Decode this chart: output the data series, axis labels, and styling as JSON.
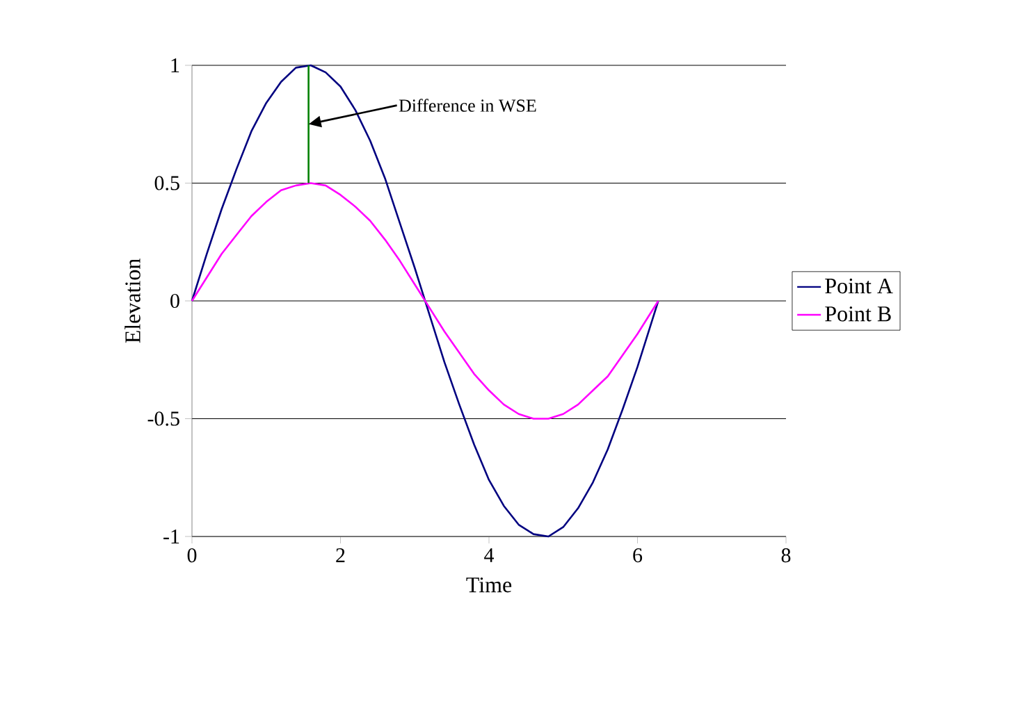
{
  "chart_data": {
    "type": "line",
    "xlabel": "Time",
    "ylabel": "Elevation",
    "xlim": [
      0,
      8
    ],
    "ylim": [
      -1,
      1
    ],
    "xticks": [
      0,
      2,
      4,
      6,
      8
    ],
    "yticks": [
      -1,
      -0.5,
      0,
      0.5,
      1
    ],
    "grid": "y",
    "legend": "right",
    "x": [
      0,
      0.2,
      0.4,
      0.6,
      0.8,
      1.0,
      1.2,
      1.4,
      1.6,
      1.8,
      2.0,
      2.2,
      2.4,
      2.6,
      2.8,
      3.0,
      3.2,
      3.4,
      3.6,
      3.8,
      4.0,
      4.2,
      4.4,
      4.6,
      4.8,
      5.0,
      5.2,
      5.4,
      5.6,
      5.8,
      6.0,
      6.2,
      6.28
    ],
    "series": [
      {
        "name": "Point A",
        "color": "#000080",
        "values": [
          0,
          0.2,
          0.39,
          0.56,
          0.72,
          0.84,
          0.93,
          0.99,
          1.0,
          0.97,
          0.91,
          0.81,
          0.68,
          0.52,
          0.33,
          0.14,
          -0.06,
          -0.26,
          -0.44,
          -0.61,
          -0.76,
          -0.87,
          -0.95,
          -0.99,
          -1.0,
          -0.96,
          -0.88,
          -0.77,
          -0.63,
          -0.46,
          -0.28,
          -0.08,
          0
        ]
      },
      {
        "name": "Point B",
        "color": "#ff00ff",
        "values": [
          0,
          0.1,
          0.2,
          0.28,
          0.36,
          0.42,
          0.47,
          0.49,
          0.5,
          0.49,
          0.45,
          0.4,
          0.34,
          0.26,
          0.17,
          0.07,
          -0.03,
          -0.13,
          -0.22,
          -0.31,
          -0.38,
          -0.44,
          -0.48,
          -0.5,
          -0.5,
          -0.48,
          -0.44,
          -0.38,
          -0.32,
          -0.23,
          -0.14,
          -0.04,
          0
        ]
      },
      {
        "color": "#008000",
        "x": [
          1.57,
          1.57
        ],
        "values": [
          0.5,
          1
        ]
      }
    ],
    "annotations": [
      {
        "text": "Difference in WSE",
        "x": 1.57,
        "y": 0.75
      }
    ]
  }
}
